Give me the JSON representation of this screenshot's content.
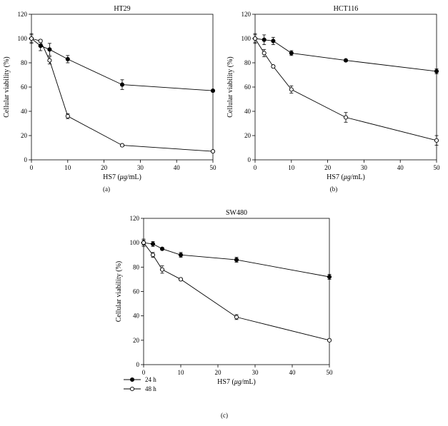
{
  "chart_data": [
    {
      "type": "line",
      "panel": "(a)",
      "title": "HT29",
      "xlabel_prefix": "HS7 (",
      "xlabel_unit": "μg",
      "xlabel_suffix": "/mL)",
      "ylabel": "Cellular viability (%)",
      "xlim": [
        0,
        50
      ],
      "ylim": [
        0,
        120
      ],
      "xticks": [
        0,
        10,
        20,
        30,
        40,
        50
      ],
      "yticks": [
        0,
        20,
        40,
        60,
        80,
        100,
        120
      ],
      "series": [
        {
          "name": "24 h",
          "marker": "filled",
          "x": [
            0,
            2.5,
            5,
            10,
            25,
            50
          ],
          "y": [
            100,
            94,
            91,
            83,
            62,
            57
          ],
          "err": [
            4,
            4,
            5,
            3,
            4,
            1
          ]
        },
        {
          "name": "48 h",
          "marker": "open",
          "x": [
            0,
            2.5,
            5,
            10,
            25,
            50
          ],
          "y": [
            100,
            98,
            82,
            36,
            12,
            7
          ],
          "err": [
            3,
            1,
            3,
            2,
            1,
            1
          ]
        }
      ]
    },
    {
      "type": "line",
      "panel": "(b)",
      "title": "HCT116",
      "xlabel_prefix": "HS7 (",
      "xlabel_unit": "μg",
      "xlabel_suffix": "/mL)",
      "ylabel": "Cellular viability (%)",
      "xlim": [
        0,
        50
      ],
      "ylim": [
        0,
        120
      ],
      "xticks": [
        0,
        10,
        20,
        30,
        40,
        50
      ],
      "yticks": [
        0,
        20,
        40,
        60,
        80,
        100,
        120
      ],
      "series": [
        {
          "name": "24 h",
          "marker": "filled",
          "x": [
            0,
            2.5,
            5,
            10,
            25,
            50
          ],
          "y": [
            100,
            99,
            98,
            88,
            82,
            73
          ],
          "err": [
            4,
            4,
            3,
            2,
            1,
            2
          ]
        },
        {
          "name": "48 h",
          "marker": "open",
          "x": [
            0,
            2.5,
            5,
            10,
            25,
            50
          ],
          "y": [
            100,
            88,
            77,
            58,
            35,
            16
          ],
          "err": [
            3,
            3,
            1,
            3,
            4,
            4
          ]
        }
      ]
    },
    {
      "type": "line",
      "panel": "(c)",
      "title": "SW480",
      "xlabel_prefix": "HS7 (",
      "xlabel_unit": "μg",
      "xlabel_suffix": "/mL)",
      "ylabel": "Cellular viability (%)",
      "xlim": [
        0,
        50
      ],
      "ylim": [
        0,
        120
      ],
      "xticks": [
        0,
        10,
        20,
        30,
        40,
        50
      ],
      "yticks": [
        0,
        20,
        40,
        60,
        80,
        100,
        120
      ],
      "series": [
        {
          "name": "24 h",
          "marker": "filled",
          "x": [
            0,
            2.5,
            5,
            10,
            25,
            50
          ],
          "y": [
            100,
            99,
            95,
            90,
            86,
            72
          ],
          "err": [
            2,
            2,
            1,
            2,
            2,
            2
          ]
        },
        {
          "name": "48 h",
          "marker": "open",
          "x": [
            0,
            2.5,
            5,
            10,
            25,
            50
          ],
          "y": [
            100,
            90,
            78,
            70,
            39,
            20
          ],
          "err": [
            3,
            2,
            3,
            1,
            2,
            1
          ]
        }
      ],
      "legend": [
        "24 h",
        "48 h"
      ]
    }
  ]
}
